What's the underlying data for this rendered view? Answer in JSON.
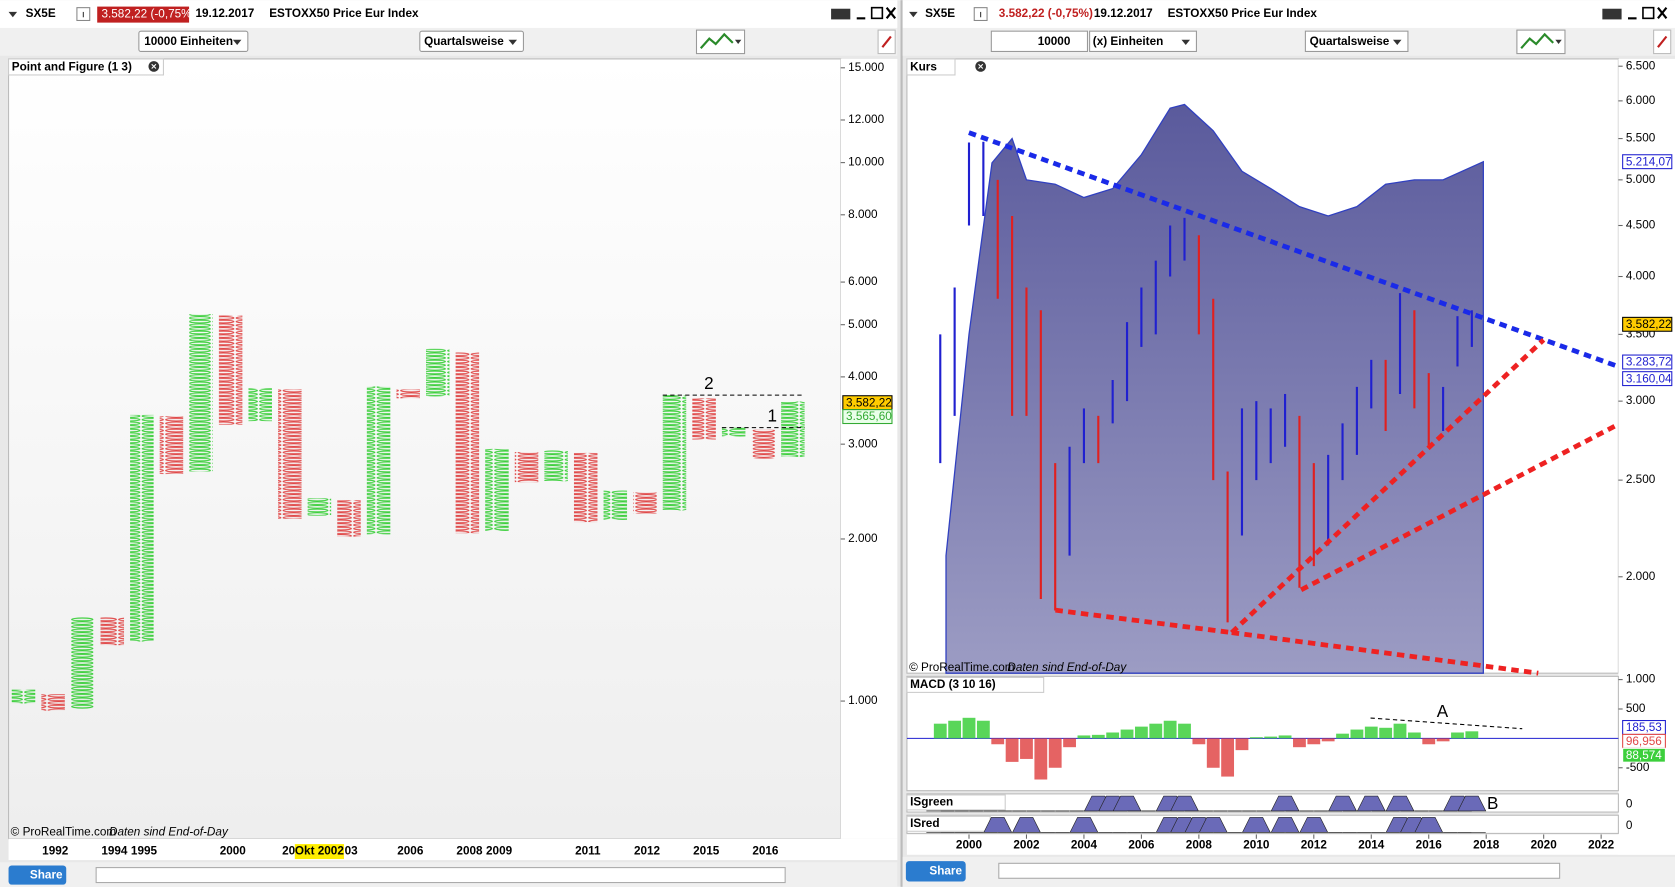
{
  "left": {
    "header": {
      "symbol": "SX5E",
      "change": "3.582,22 (-0,75%)",
      "date": "19.12.2017",
      "name": "ESTOXX50 Price Eur Index"
    },
    "controls": {
      "units": "10000 Einheiten",
      "period": "Quartalsweise"
    },
    "panel_title": "Point and Figure (1 3)",
    "watermark": "© ProRealTime.com",
    "eod": "Daten sind End-of-Day",
    "share": "Share",
    "chart_data": {
      "type": "pnf",
      "log_scale": true,
      "ylim": [
        555,
        15580
      ],
      "yticks": [
        {
          "value": 15000,
          "label": "15.000"
        },
        {
          "value": 12000,
          "label": "12.000"
        },
        {
          "value": 10000,
          "label": "10.000"
        },
        {
          "value": 8000,
          "label": "8.000"
        },
        {
          "value": 6000,
          "label": "6.000"
        },
        {
          "value": 5000,
          "label": "5.000"
        },
        {
          "value": 4000,
          "label": "4.000"
        },
        {
          "value": 3000,
          "label": "3.000"
        },
        {
          "value": 2000,
          "label": "2.000"
        },
        {
          "value": 1000,
          "label": "1.000"
        }
      ],
      "up_color": "#3ccf3c",
      "down_color": "#e04848",
      "columns": [
        {
          "low": 990,
          "high": 1050,
          "direction": "up"
        },
        {
          "low": 960,
          "high": 1030,
          "direction": "down"
        },
        {
          "low": 968,
          "high": 1430,
          "direction": "up"
        },
        {
          "low": 1270,
          "high": 1430,
          "direction": "down"
        },
        {
          "low": 1290,
          "high": 3400,
          "direction": "up"
        },
        {
          "low": 2640,
          "high": 3380,
          "direction": "down"
        },
        {
          "low": 2670,
          "high": 5230,
          "direction": "up"
        },
        {
          "low": 3260,
          "high": 5200,
          "direction": "down"
        },
        {
          "low": 3310,
          "high": 3810,
          "direction": "up"
        },
        {
          "low": 2180,
          "high": 3790,
          "direction": "down"
        },
        {
          "low": 2210,
          "high": 2380,
          "direction": "up"
        },
        {
          "low": 2020,
          "high": 2360,
          "direction": "down"
        },
        {
          "low": 2040,
          "high": 3840,
          "direction": "up"
        },
        {
          "low": 3650,
          "high": 3790,
          "direction": "down"
        },
        {
          "low": 3680,
          "high": 4510,
          "direction": "up"
        },
        {
          "low": 2050,
          "high": 4440,
          "direction": "down"
        },
        {
          "low": 2070,
          "high": 2940,
          "direction": "up"
        },
        {
          "low": 2550,
          "high": 2900,
          "direction": "down"
        },
        {
          "low": 2560,
          "high": 2920,
          "direction": "up"
        },
        {
          "low": 2150,
          "high": 2890,
          "direction": "down"
        },
        {
          "low": 2170,
          "high": 2460,
          "direction": "up"
        },
        {
          "low": 2230,
          "high": 2440,
          "direction": "down"
        },
        {
          "low": 2260,
          "high": 3700,
          "direction": "up"
        },
        {
          "low": 3060,
          "high": 3650,
          "direction": "down"
        },
        {
          "low": 3100,
          "high": 3220,
          "direction": "up"
        },
        {
          "low": 2820,
          "high": 3190,
          "direction": "down"
        },
        {
          "low": 2840,
          "high": 3600,
          "direction": "up"
        }
      ],
      "x_labels": [
        "1992",
        "1994",
        "1995",
        "2000",
        "200",
        "03",
        "2006",
        "2008",
        "2009",
        "2011",
        "2012",
        "2015",
        "2016"
      ],
      "highlight_label": "Okt 2002",
      "price_labels": [
        {
          "value": 3582.22,
          "label": "3.582,22",
          "color": "#000000",
          "bg": "#ffcc00"
        },
        {
          "value": 3565.6,
          "label": "3.565,60",
          "color": "#33aa33",
          "bg": "#eaffea"
        }
      ],
      "annotations": [
        "2",
        "1"
      ]
    }
  },
  "right": {
    "header": {
      "symbol": "SX5E",
      "change": "3.582,22 (-0,75%)",
      "date": "19.12.2017",
      "name": "ESTOXX50 Price Eur Index"
    },
    "controls": {
      "quantity": "10000",
      "units": "(x) Einheiten",
      "period": "Quartalsweise"
    },
    "panel_title": "Kurs",
    "watermark": "© ProRealTime.com",
    "eod": "Daten sind End-of-Day",
    "share": "Share",
    "chart_data": {
      "type": "range-bar",
      "log_scale": true,
      "ylim": [
        1601,
        6610
      ],
      "xlim": [
        1997.84,
        2022.6
      ],
      "yticks": [
        {
          "value": 6500,
          "label": "6.500"
        },
        {
          "value": 6000,
          "label": "6.000"
        },
        {
          "value": 5500,
          "label": "5.500"
        },
        {
          "value": 5000,
          "label": "5.000"
        },
        {
          "value": 4500,
          "label": "4.500"
        },
        {
          "value": 4000,
          "label": "4.000"
        },
        {
          "value": 3500,
          "label": "3.500"
        },
        {
          "value": 3000,
          "label": "3.000"
        },
        {
          "value": 2500,
          "label": "2.500"
        },
        {
          "value": 2000,
          "label": "2.000"
        }
      ],
      "xticks": [
        2000,
        2002,
        2004,
        2006,
        2008,
        2010,
        2012,
        2014,
        2016,
        2018,
        2020,
        2022
      ],
      "up_color": "#2020d0",
      "down_color": "#e02020",
      "band_color": "#5a5a9c",
      "x": [
        1999,
        1999.5,
        2000,
        2000.5,
        2001,
        2001.5,
        2002,
        2002.5,
        2003,
        2003.5,
        2004,
        2004.5,
        2005,
        2005.5,
        2006,
        2006.5,
        2007,
        2007.5,
        2008,
        2008.5,
        2009,
        2009.5,
        2010,
        2010.5,
        2011,
        2011.5,
        2012,
        2012.5,
        2013,
        2013.5,
        2014,
        2014.5,
        2015,
        2015.5,
        2016,
        2016.5,
        2017,
        2017.5
      ],
      "high": [
        3500,
        3900,
        5450,
        5460,
        5000,
        4600,
        3900,
        3700,
        2600,
        2700,
        2950,
        2900,
        3150,
        3600,
        3900,
        4150,
        4500,
        4580,
        4400,
        3800,
        2550,
        2950,
        3000,
        2950,
        3050,
        2900,
        2600,
        2650,
        2850,
        3100,
        3300,
        3300,
        3850,
        3700,
        3200,
        3100,
        3650,
        3700
      ],
      "low": [
        2600,
        2900,
        4500,
        4600,
        3800,
        2900,
        2900,
        1900,
        1850,
        2100,
        2600,
        2600,
        2850,
        3000,
        3400,
        3500,
        4000,
        4150,
        3500,
        2500,
        1800,
        2200,
        2500,
        2600,
        2700,
        1950,
        2050,
        2150,
        2500,
        2650,
        2950,
        2800,
        3050,
        2950,
        2700,
        2800,
        3250,
        3400
      ],
      "band": {
        "x": [
          1999.2,
          2000,
          2000.8,
          2001.5,
          2002,
          2003,
          2004,
          2005,
          2006,
          2007,
          2007.5,
          2008.5,
          2009.5,
          2010.5,
          2011.5,
          2012.5,
          2013.5,
          2014.5,
          2015.5,
          2016.5,
          2017.9
        ],
        "values": [
          2100,
          3500,
          5200,
          5500,
          5000,
          4950,
          4800,
          4900,
          5300,
          5900,
          5950,
          5600,
          5100,
          4900,
          4700,
          4600,
          4700,
          4950,
          5000,
          5000,
          5214.07
        ]
      },
      "price_labels": [
        {
          "value": 5214.07,
          "label": "5.214,07",
          "color": "#2020d0",
          "bg": "#ffffff"
        },
        {
          "value": 3582.22,
          "label": "3.582,22",
          "color": "#000000",
          "bg": "#ffcc00"
        },
        {
          "value": 3283.72,
          "label": "3.283,72",
          "color": "#2020d0",
          "bg": "#ffffff"
        },
        {
          "value": 3160.04,
          "label": "3.160,04",
          "color": "#2020d0",
          "bg": "#ffffff"
        }
      ]
    },
    "macd": {
      "title": "MACD (3 10 16)",
      "type": "bar",
      "ylim": [
        -890,
        1055
      ],
      "yticks": [
        {
          "value": 1000,
          "label": "1.000"
        },
        500,
        -500
      ],
      "up_color": "#3ccf3c",
      "down_color": "#e04848",
      "values": [
        250,
        300,
        350,
        300,
        -100,
        -400,
        -350,
        -700,
        -500,
        -150,
        50,
        60,
        100,
        150,
        200,
        250,
        300,
        250,
        -100,
        -500,
        -650,
        -200,
        20,
        30,
        50,
        -150,
        -100,
        -50,
        80,
        150,
        200,
        180,
        250,
        100,
        -100,
        -50,
        100,
        120
      ],
      "price_labels": [
        {
          "value": 185.53,
          "label": "185,53",
          "color": "#2020d0",
          "bg": "#ffffff"
        },
        {
          "value": 96.956,
          "label": "96,956",
          "color": "#e04848",
          "bg": "#ffffff"
        },
        {
          "value": 88.574,
          "label": "88,574",
          "color": "#ffffff",
          "bg": "#3ccf3c"
        }
      ],
      "annotation": "A"
    },
    "isgreen": {
      "title": "ISgreen",
      "ylim": [
        0,
        1
      ],
      "yticks": [
        0
      ],
      "color": "#6a6ab8",
      "annotation": "B",
      "values": [
        0,
        0,
        0,
        0,
        0,
        0,
        0,
        0,
        0,
        0,
        0,
        1,
        1,
        1,
        0,
        0,
        1,
        1,
        0,
        0,
        0,
        0,
        0,
        0,
        1,
        0,
        0,
        0,
        1,
        0,
        1,
        0,
        1,
        0,
        0,
        0,
        1,
        1
      ]
    },
    "isred": {
      "title": "ISred",
      "ylim": [
        0,
        1
      ],
      "yticks": [
        0
      ],
      "color": "#6a6ab8",
      "values": [
        0,
        0,
        0,
        0,
        1,
        0,
        1,
        0,
        0,
        0,
        1,
        0,
        0,
        0,
        0,
        0,
        1,
        1,
        1,
        1,
        0,
        0,
        1,
        0,
        1,
        0,
        1,
        0,
        0,
        0,
        0,
        0,
        1,
        1,
        1,
        0,
        0,
        0
      ]
    }
  }
}
